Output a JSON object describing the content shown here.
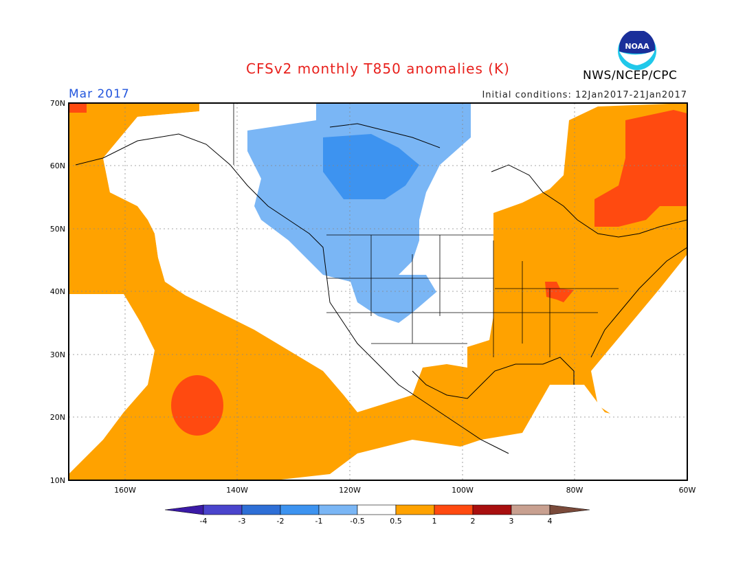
{
  "header": {
    "title": "CFSv2 monthly T850 anomalies (K)",
    "period": "Mar 2017",
    "initial_conditions": "Initial conditions: 12Jan2017-21Jan2017",
    "agency": "NWS/NCEP/CPC",
    "logo_text": "NOAA"
  },
  "axes": {
    "lat_labels": [
      "70N",
      "60N",
      "50N",
      "40N",
      "30N",
      "20N",
      "10N"
    ],
    "lon_labels": [
      "160W",
      "140W",
      "120W",
      "100W",
      "80W",
      "60W"
    ]
  },
  "colorbar": {
    "tick_labels": [
      "-4",
      "-3",
      "-2",
      "-1",
      "-0.5",
      "0.5",
      "1",
      "2",
      "3",
      "4"
    ],
    "colors": [
      "#3b1aa6",
      "#4a44cc",
      "#2e6fd6",
      "#3d93f0",
      "#7ab6f5",
      "#ffffff",
      "#ffa200",
      "#ff4a10",
      "#a80f0f",
      "#c8a090",
      "#7a4a3a"
    ]
  },
  "anomaly_colors": {
    "neg_0_5_1": "#7ab6f5",
    "neg_1_2": "#3d93f0",
    "pos_0_5_1": "#ffa200",
    "pos_1_2": "#ff4a10"
  }
}
